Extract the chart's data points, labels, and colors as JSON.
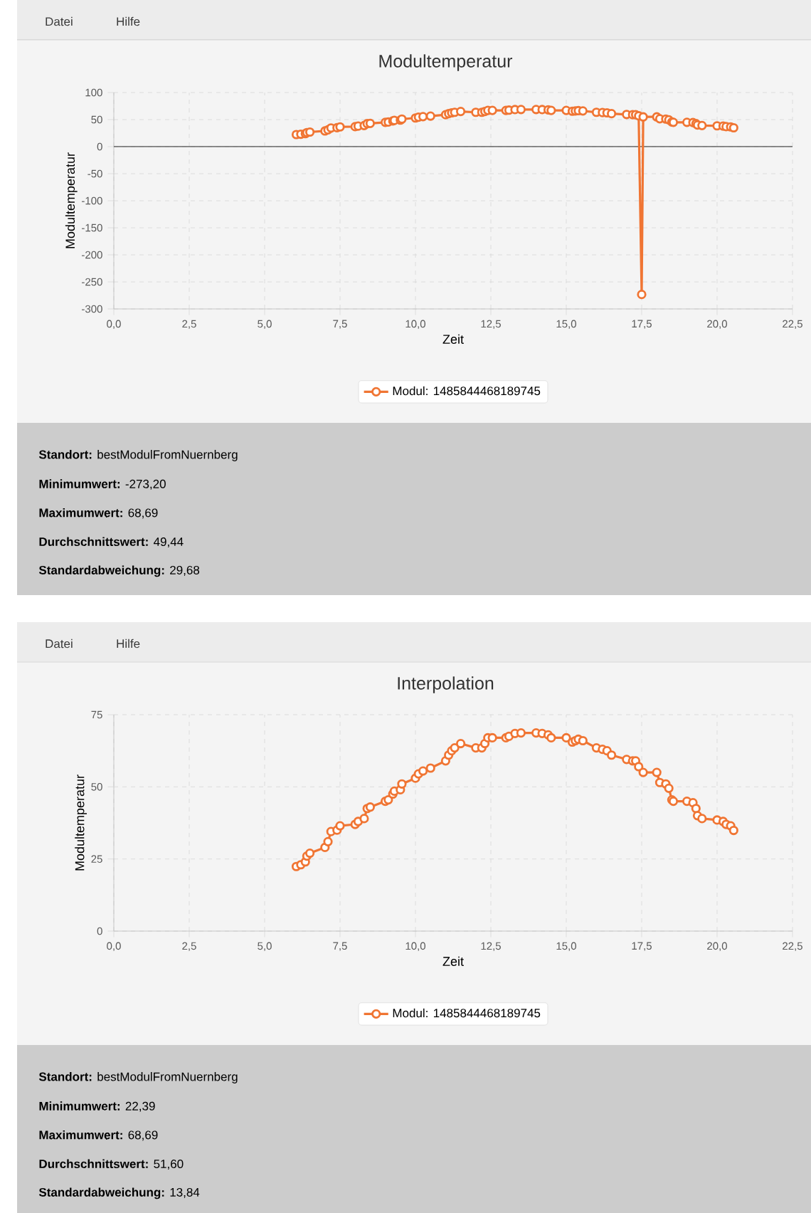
{
  "chart_data": [
    {
      "type": "line",
      "title": "Modultemperatur",
      "xlabel": "Zeit",
      "ylabel": "Modultemperatur",
      "x": [
        6.05,
        6.2,
        6.35,
        6.4,
        6.5,
        7.0,
        7.1,
        7.2,
        7.4,
        7.5,
        8.0,
        8.1,
        8.3,
        8.4,
        8.5,
        9.0,
        9.1,
        9.25,
        9.3,
        9.5,
        9.55,
        10.0,
        10.1,
        10.25,
        10.5,
        11.0,
        11.1,
        11.2,
        11.3,
        11.5,
        12.0,
        12.2,
        12.3,
        12.4,
        12.55,
        13.0,
        13.1,
        13.3,
        13.5,
        14.0,
        14.2,
        14.4,
        14.5,
        15.0,
        15.2,
        15.3,
        15.4,
        15.55,
        16.0,
        16.2,
        16.35,
        16.5,
        17.0,
        17.2,
        17.3,
        17.4,
        17.5,
        17.55,
        18.0,
        18.1,
        18.3,
        18.4,
        18.5,
        18.55,
        19.0,
        19.2,
        19.3,
        19.35,
        19.5,
        20.0,
        20.2,
        20.3,
        20.45,
        20.55
      ],
      "series": [
        {
          "name": "Modul: 1485844468189745",
          "color": "#f07533",
          "values": [
            22.39,
            23,
            24,
            26,
            27,
            29,
            31,
            34.5,
            35,
            36.5,
            37,
            38,
            39,
            42.5,
            43,
            45,
            45.5,
            47.5,
            48.5,
            49,
            51,
            53,
            54.5,
            55.5,
            56.5,
            59,
            61,
            62.5,
            63.5,
            65,
            63.5,
            63.5,
            65,
            67,
            67,
            67,
            67.5,
            68.5,
            68.69,
            68.69,
            68.5,
            68,
            67,
            67,
            65.5,
            66,
            66.5,
            66,
            63.5,
            63,
            62.5,
            61,
            59.5,
            59,
            59,
            57,
            -273.2,
            55,
            55,
            51.5,
            51,
            49.5,
            45.5,
            45,
            45,
            44.5,
            42.5,
            40,
            39,
            38.5,
            38,
            37,
            36.5,
            34.9
          ]
        }
      ],
      "xlim": [
        0,
        22.5
      ],
      "xticks": [
        {
          "value": 0,
          "label": "0,0"
        },
        {
          "value": 2.5,
          "label": "2,5"
        },
        {
          "value": 5,
          "label": "5,0"
        },
        {
          "value": 7.5,
          "label": "7,5"
        },
        {
          "value": 10,
          "label": "10,0"
        },
        {
          "value": 12.5,
          "label": "12,5"
        },
        {
          "value": 15,
          "label": "15,0"
        },
        {
          "value": 17.5,
          "label": "17,5"
        },
        {
          "value": 20,
          "label": "20,0"
        },
        {
          "value": 22.5,
          "label": "22,5"
        }
      ],
      "ylim": [
        -300,
        100
      ],
      "yticks": [
        -300,
        -250,
        -200,
        -150,
        -100,
        -50,
        0,
        50,
        100
      ],
      "ref_lines": [
        {
          "axis": "y",
          "value": 0,
          "color": "#555555"
        }
      ],
      "grid": true,
      "legend": "bottom",
      "marker": "circle",
      "line_style": "solid",
      "annotations": [
        "Datei",
        "Hilfe",
        "**Standort:** bestModulFromNuernberg",
        "**Minimumwert:** -273,20",
        "**Maximumwert:** 68,69",
        "**Durchschnittswert:** 49,44",
        "**Standardabweichung:** 29,68"
      ]
    },
    {
      "type": "line",
      "title": "Interpolation",
      "xlabel": "Zeit",
      "ylabel": "Modultemperatur",
      "x": [
        6.05,
        6.2,
        6.35,
        6.4,
        6.5,
        7.0,
        7.1,
        7.2,
        7.4,
        7.5,
        8.0,
        8.1,
        8.3,
        8.4,
        8.5,
        9.0,
        9.1,
        9.25,
        9.3,
        9.5,
        9.55,
        10.0,
        10.1,
        10.25,
        10.5,
        11.0,
        11.1,
        11.2,
        11.3,
        11.5,
        12.0,
        12.2,
        12.3,
        12.4,
        12.55,
        13.0,
        13.1,
        13.3,
        13.5,
        14.0,
        14.2,
        14.4,
        14.5,
        15.0,
        15.2,
        15.3,
        15.4,
        15.55,
        16.0,
        16.2,
        16.35,
        16.5,
        17.0,
        17.2,
        17.3,
        17.4,
        17.55,
        18.0,
        18.1,
        18.3,
        18.4,
        18.5,
        18.55,
        19.0,
        19.2,
        19.3,
        19.35,
        19.5,
        20.0,
        20.2,
        20.3,
        20.45,
        20.55
      ],
      "series": [
        {
          "name": "Modul: 1485844468189745",
          "color": "#f07533",
          "values": [
            22.39,
            23,
            24,
            26,
            27,
            29,
            31,
            34.5,
            35,
            36.5,
            37,
            38,
            39,
            42.5,
            43,
            45,
            45.5,
            47.5,
            48.5,
            49,
            51,
            53,
            54.5,
            55.5,
            56.5,
            59,
            61,
            62.5,
            63.5,
            65,
            63.5,
            63.5,
            65,
            67,
            67,
            67,
            67.5,
            68.5,
            68.69,
            68.69,
            68.5,
            68,
            67,
            67,
            65.5,
            66,
            66.5,
            66,
            63.5,
            63,
            62.5,
            61,
            59.5,
            59,
            59,
            57,
            55,
            55,
            51.5,
            51,
            49.5,
            45.5,
            45,
            45,
            44.5,
            42.5,
            40,
            39,
            38.5,
            38,
            37,
            36.5,
            34.9
          ]
        }
      ],
      "xlim": [
        0,
        22.5
      ],
      "xticks": [
        {
          "value": 0,
          "label": "0,0"
        },
        {
          "value": 2.5,
          "label": "2,5"
        },
        {
          "value": 5,
          "label": "5,0"
        },
        {
          "value": 7.5,
          "label": "7,5"
        },
        {
          "value": 10,
          "label": "10,0"
        },
        {
          "value": 12.5,
          "label": "12,5"
        },
        {
          "value": 15,
          "label": "15,0"
        },
        {
          "value": 17.5,
          "label": "17,5"
        },
        {
          "value": 20,
          "label": "20,0"
        },
        {
          "value": 22.5,
          "label": "22,5"
        }
      ],
      "ylim": [
        0,
        75
      ],
      "yticks": [
        0,
        25,
        50,
        75
      ],
      "grid": true,
      "legend": "bottom",
      "marker": "circle",
      "line_style": "solid",
      "annotations": [
        "Datei",
        "Hilfe",
        "**Standort:** bestModulFromNuernberg",
        "**Minimumwert:** 22,39",
        "**Maximumwert:** 68,69",
        "**Durchschnittswert:** 51,60",
        "**Standardabweichung:** 13,84"
      ]
    }
  ]
}
